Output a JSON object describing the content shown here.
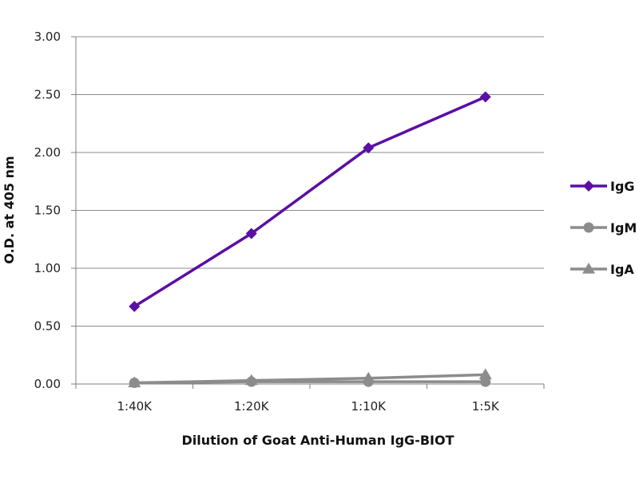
{
  "chart_data": {
    "type": "line",
    "title": "",
    "xlabel": "Dilution of Goat Anti-Human IgG-BIOT",
    "ylabel": "O.D. at 405 nm",
    "categories": [
      "1:40K",
      "1:20K",
      "1:10K",
      "1:5K"
    ],
    "ylim": [
      0,
      3
    ],
    "yticks": [
      "0.00",
      "0.50",
      "1.00",
      "1.50",
      "2.00",
      "2.50",
      "3.00"
    ],
    "grid": "horizontal",
    "legend_position": "right",
    "series": [
      {
        "name": "IgG",
        "values": [
          0.67,
          1.3,
          2.04,
          2.48
        ],
        "color": "#5b0fa3",
        "marker": "diamond"
      },
      {
        "name": "IgM",
        "values": [
          0.01,
          0.02,
          0.02,
          0.02
        ],
        "color": "#8c8c8c",
        "marker": "circle"
      },
      {
        "name": "IgA",
        "values": [
          0.01,
          0.03,
          0.05,
          0.08
        ],
        "color": "#8c8c8c",
        "marker": "triangle"
      }
    ]
  }
}
